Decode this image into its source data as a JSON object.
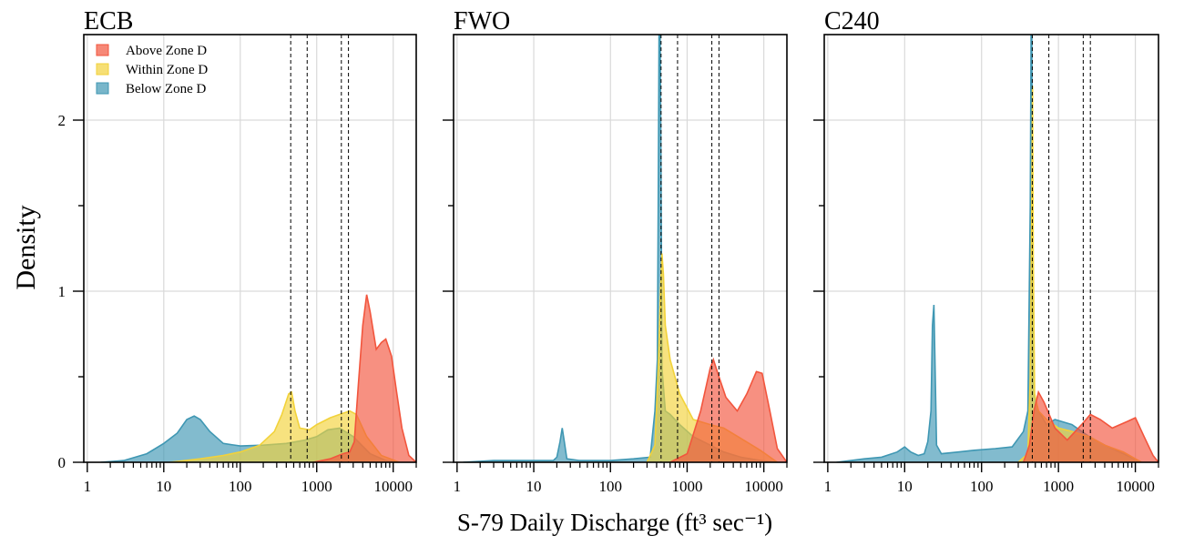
{
  "chart_data": {
    "type": "area",
    "xlabel": "S-79 Daily Discharge (ft³ sec⁻¹)",
    "ylabel": "Density",
    "x_scale": "log",
    "xlim": [
      0.9,
      20000
    ],
    "ylim": [
      0,
      2.5
    ],
    "x_ticks": [
      1,
      10,
      100,
      1000,
      10000
    ],
    "x_tick_labels": [
      "1",
      "10",
      "100",
      "1000",
      "10000"
    ],
    "y_ticks": [
      0,
      1,
      2
    ],
    "y_tick_labels": [
      "0",
      "1",
      "2"
    ],
    "grid": true,
    "legend": {
      "position": "top-left",
      "entries": [
        {
          "name": "Above Zone D",
          "color": "#f2553d"
        },
        {
          "name": "Within Zone D",
          "color": "#f2d23a"
        },
        {
          "name": "Below Zone D",
          "color": "#3f97b3"
        }
      ]
    },
    "reference_lines_x": [
      457,
      750,
      2100,
      2600
    ],
    "panels": [
      {
        "title": "ECB",
        "series": [
          {
            "name": "Below Zone D",
            "color": "#3f97b3",
            "points": [
              [
                1.5,
                0
              ],
              [
                3,
                0.01
              ],
              [
                6,
                0.05
              ],
              [
                10,
                0.11
              ],
              [
                15,
                0.17
              ],
              [
                20,
                0.25
              ],
              [
                25,
                0.27
              ],
              [
                30,
                0.25
              ],
              [
                40,
                0.18
              ],
              [
                60,
                0.11
              ],
              [
                100,
                0.095
              ],
              [
                200,
                0.1
              ],
              [
                400,
                0.11
              ],
              [
                700,
                0.13
              ],
              [
                1000,
                0.15
              ],
              [
                1400,
                0.19
              ],
              [
                2000,
                0.2
              ],
              [
                3000,
                0.15
              ],
              [
                5000,
                0.05
              ],
              [
                8000,
                0.01
              ],
              [
                12000,
                0
              ]
            ]
          },
          {
            "name": "Within Zone D",
            "color": "#f2d23a",
            "points": [
              [
                12,
                0
              ],
              [
                30,
                0.02
              ],
              [
                60,
                0.04
              ],
              [
                100,
                0.06
              ],
              [
                180,
                0.1
              ],
              [
                280,
                0.18
              ],
              [
                350,
                0.28
              ],
              [
                430,
                0.4
              ],
              [
                470,
                0.41
              ],
              [
                520,
                0.3
              ],
              [
                600,
                0.2
              ],
              [
                800,
                0.19
              ],
              [
                1000,
                0.22
              ],
              [
                1500,
                0.26
              ],
              [
                2000,
                0.28
              ],
              [
                2700,
                0.3
              ],
              [
                3300,
                0.28
              ],
              [
                4500,
                0.15
              ],
              [
                7000,
                0.04
              ],
              [
                12000,
                0
              ]
            ]
          },
          {
            "name": "Above Zone D",
            "color": "#f2553d",
            "points": [
              [
                900,
                0
              ],
              [
                1500,
                0.02
              ],
              [
                2200,
                0.05
              ],
              [
                2700,
                0.06
              ],
              [
                3100,
                0.12
              ],
              [
                3500,
                0.45
              ],
              [
                4000,
                0.8
              ],
              [
                4500,
                0.98
              ],
              [
                5000,
                0.88
              ],
              [
                6000,
                0.66
              ],
              [
                7000,
                0.7
              ],
              [
                8000,
                0.72
              ],
              [
                9500,
                0.62
              ],
              [
                11000,
                0.42
              ],
              [
                13000,
                0.2
              ],
              [
                16000,
                0.04
              ],
              [
                20000,
                0
              ]
            ]
          }
        ]
      },
      {
        "title": "FWO",
        "series": [
          {
            "name": "Below Zone D",
            "color": "#3f97b3",
            "points": [
              [
                1.2,
                0
              ],
              [
                3,
                0.01
              ],
              [
                10,
                0.01
              ],
              [
                18,
                0.01
              ],
              [
                20,
                0.03
              ],
              [
                22,
                0.12
              ],
              [
                23.5,
                0.2
              ],
              [
                25,
                0.12
              ],
              [
                27,
                0.02
              ],
              [
                40,
                0.01
              ],
              [
                100,
                0.01
              ],
              [
                200,
                0.02
              ],
              [
                330,
                0.03
              ],
              [
                380,
                0.3
              ],
              [
                410,
                0.6
              ],
              [
                420,
                1.5
              ],
              [
                430,
                2.5
              ],
              [
                445,
                2.5
              ],
              [
                455,
                1.8
              ],
              [
                470,
                0.55
              ],
              [
                520,
                0.3
              ],
              [
                600,
                0.28
              ],
              [
                800,
                0.22
              ],
              [
                1200,
                0.15
              ],
              [
                2000,
                0.1
              ],
              [
                3000,
                0.06
              ],
              [
                5000,
                0.03
              ],
              [
                9000,
                0.01
              ],
              [
                15000,
                0
              ]
            ]
          },
          {
            "name": "Within Zone D",
            "color": "#f2d23a",
            "points": [
              [
                300,
                0
              ],
              [
                380,
                0.1
              ],
              [
                420,
                0.55
              ],
              [
                450,
                1.0
              ],
              [
                470,
                1.22
              ],
              [
                490,
                1.1
              ],
              [
                520,
                0.8
              ],
              [
                600,
                0.6
              ],
              [
                800,
                0.4
              ],
              [
                1200,
                0.25
              ],
              [
                2000,
                0.22
              ],
              [
                3000,
                0.2
              ],
              [
                5000,
                0.14
              ],
              [
                9000,
                0.07
              ],
              [
                15000,
                0
              ]
            ]
          },
          {
            "name": "Above Zone D",
            "color": "#f2553d",
            "points": [
              [
                600,
                0
              ],
              [
                1000,
                0.05
              ],
              [
                1500,
                0.3
              ],
              [
                2000,
                0.55
              ],
              [
                2200,
                0.6
              ],
              [
                2600,
                0.5
              ],
              [
                3200,
                0.38
              ],
              [
                4500,
                0.3
              ],
              [
                6000,
                0.4
              ],
              [
                8000,
                0.53
              ],
              [
                9500,
                0.52
              ],
              [
                12000,
                0.3
              ],
              [
                15000,
                0.08
              ],
              [
                20000,
                0
              ]
            ]
          }
        ]
      },
      {
        "title": "C240",
        "series": [
          {
            "name": "Below Zone D",
            "color": "#3f97b3",
            "points": [
              [
                1.3,
                0
              ],
              [
                2,
                0.01
              ],
              [
                3,
                0.02
              ],
              [
                5,
                0.03
              ],
              [
                8,
                0.06
              ],
              [
                10,
                0.09
              ],
              [
                12,
                0.06
              ],
              [
                15,
                0.04
              ],
              [
                18,
                0.05
              ],
              [
                20,
                0.12
              ],
              [
                22,
                0.3
              ],
              [
                23,
                0.8
              ],
              [
                24,
                0.92
              ],
              [
                25,
                0.5
              ],
              [
                26,
                0.1
              ],
              [
                30,
                0.05
              ],
              [
                50,
                0.06
              ],
              [
                80,
                0.07
              ],
              [
                150,
                0.08
              ],
              [
                250,
                0.09
              ],
              [
                350,
                0.18
              ],
              [
                400,
                0.3
              ],
              [
                430,
                1.5
              ],
              [
                440,
                2.5
              ],
              [
                450,
                2.5
              ],
              [
                460,
                1.2
              ],
              [
                480,
                0.4
              ],
              [
                550,
                0.3
              ],
              [
                700,
                0.22
              ],
              [
                900,
                0.25
              ],
              [
                1500,
                0.22
              ],
              [
                2500,
                0.15
              ],
              [
                4000,
                0.1
              ],
              [
                7000,
                0.05
              ],
              [
                12000,
                0
              ]
            ]
          },
          {
            "name": "Within Zone D",
            "color": "#f2d23a",
            "points": [
              [
                300,
                0
              ],
              [
                400,
                0.05
              ],
              [
                430,
                0.5
              ],
              [
                450,
                1.5
              ],
              [
                460,
                2.2
              ],
              [
                470,
                1.2
              ],
              [
                490,
                0.4
              ],
              [
                550,
                0.3
              ],
              [
                700,
                0.25
              ],
              [
                1000,
                0.2
              ],
              [
                1500,
                0.18
              ],
              [
                2500,
                0.15
              ],
              [
                4000,
                0.1
              ],
              [
                7000,
                0.06
              ],
              [
                12000,
                0
              ]
            ]
          },
          {
            "name": "Above Zone D",
            "color": "#f2553d",
            "points": [
              [
                350,
                0
              ],
              [
                420,
                0.1
              ],
              [
                480,
                0.3
              ],
              [
                550,
                0.41
              ],
              [
                650,
                0.35
              ],
              [
                900,
                0.2
              ],
              [
                1300,
                0.13
              ],
              [
                2000,
                0.22
              ],
              [
                2600,
                0.28
              ],
              [
                3500,
                0.25
              ],
              [
                5000,
                0.2
              ],
              [
                8000,
                0.24
              ],
              [
                10000,
                0.26
              ],
              [
                13000,
                0.15
              ],
              [
                17000,
                0.04
              ],
              [
                20000,
                0
              ]
            ]
          }
        ]
      }
    ]
  }
}
